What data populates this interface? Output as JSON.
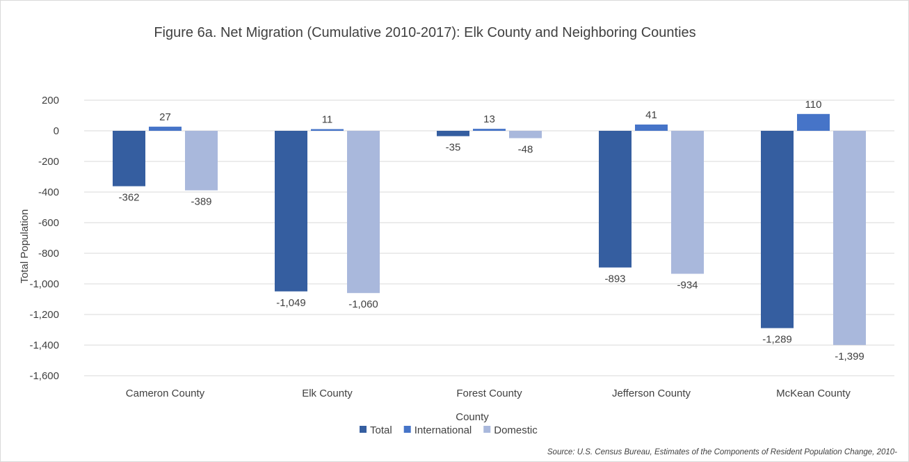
{
  "chart_data": {
    "type": "bar",
    "title": "Figure 6a. Net Migration (Cumulative 2010-2017): Elk County and Neighboring Counties",
    "xlabel": "County",
    "ylabel": "Total Population",
    "categories": [
      "Cameron County",
      "Elk County",
      "Forest County",
      "Jefferson County",
      "McKean County"
    ],
    "series": [
      {
        "name": "Total",
        "color": "#355ea0",
        "values": [
          -362,
          -1049,
          -35,
          -893,
          -1289
        ]
      },
      {
        "name": "International",
        "color": "#4674c8",
        "values": [
          27,
          11,
          13,
          41,
          110
        ]
      },
      {
        "name": "Domestic",
        "color": "#a9b8dc",
        "values": [
          -389,
          -1060,
          -48,
          -934,
          -1399
        ]
      }
    ],
    "ylim": [
      -1600,
      200
    ],
    "yticks": [
      200,
      0,
      -200,
      -400,
      -600,
      -800,
      -1000,
      -1200,
      -1400,
      -1600
    ],
    "ytick_labels": [
      "200",
      "0",
      "-200",
      "-400",
      "-600",
      "-800",
      "-1,000",
      "-1,200",
      "-1,400",
      "-1,600"
    ],
    "data_labels": [
      [
        "-362",
        "-1,049",
        "-35",
        "-893",
        "-1,289"
      ],
      [
        "27",
        "11",
        "13",
        "41",
        "110"
      ],
      [
        "-389",
        "-1,060",
        "-48",
        "-934",
        "-1,399"
      ]
    ],
    "grid": true,
    "legend_position": "bottom",
    "gridline_color": "#d9d9d9"
  },
  "source_note": "Source: U.S. Census Bureau, Estimates of the Components of Resident Population Change, 2010-"
}
